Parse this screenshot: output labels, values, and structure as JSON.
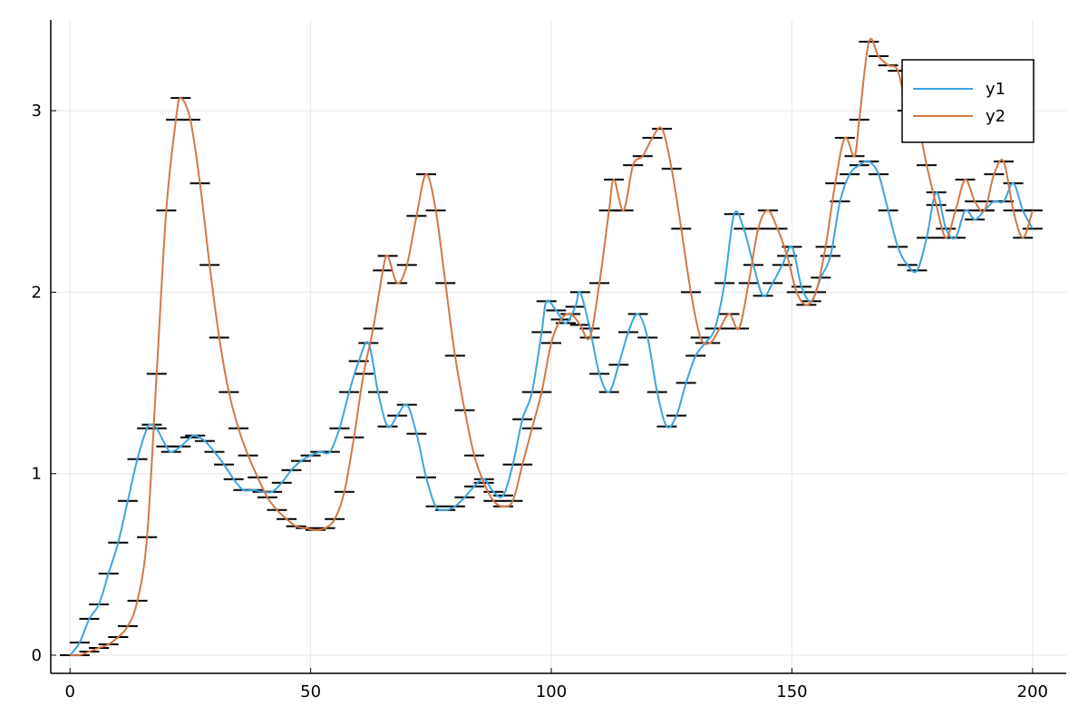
{
  "chart_data": {
    "type": "line",
    "title": "",
    "xlabel": "",
    "ylabel": "",
    "xlim": [
      -4,
      207
    ],
    "ylim": [
      -0.1,
      3.5
    ],
    "x_ticks": [
      0,
      50,
      100,
      150,
      200
    ],
    "y_ticks": [
      0,
      1,
      2,
      3
    ],
    "grid": true,
    "legend_position": "top-right",
    "series": [
      {
        "name": "y1",
        "color": "#3da4e0",
        "points": [
          [
            0,
            0
          ],
          [
            2,
            0.07
          ],
          [
            4,
            0.2
          ],
          [
            6,
            0.28
          ],
          [
            8,
            0.45
          ],
          [
            10,
            0.62
          ],
          [
            12,
            0.85
          ],
          [
            14,
            1.08
          ],
          [
            16,
            1.25
          ],
          [
            17,
            1.27
          ],
          [
            18,
            1.25
          ],
          [
            20,
            1.15
          ],
          [
            21,
            1.12
          ],
          [
            23,
            1.15
          ],
          [
            25,
            1.2
          ],
          [
            26,
            1.21
          ],
          [
            28,
            1.18
          ],
          [
            30,
            1.12
          ],
          [
            32,
            1.05
          ],
          [
            34,
            0.97
          ],
          [
            36,
            0.91
          ],
          [
            38,
            0.91
          ],
          [
            40,
            0.9
          ],
          [
            42,
            0.9
          ],
          [
            44,
            0.95
          ],
          [
            46,
            1.02
          ],
          [
            48,
            1.07
          ],
          [
            50,
            1.1
          ],
          [
            52,
            1.12
          ],
          [
            54,
            1.12
          ],
          [
            56,
            1.25
          ],
          [
            58,
            1.45
          ],
          [
            60,
            1.62
          ],
          [
            62,
            1.72
          ],
          [
            64,
            1.45
          ],
          [
            66,
            1.26
          ],
          [
            68,
            1.32
          ],
          [
            70,
            1.38
          ],
          [
            72,
            1.22
          ],
          [
            74,
            0.98
          ],
          [
            76,
            0.82
          ],
          [
            78,
            0.8
          ],
          [
            80,
            0.82
          ],
          [
            82,
            0.87
          ],
          [
            84,
            0.93
          ],
          [
            86,
            0.97
          ],
          [
            88,
            0.9
          ],
          [
            90,
            0.88
          ],
          [
            92,
            1.05
          ],
          [
            94,
            1.3
          ],
          [
            96,
            1.45
          ],
          [
            98,
            1.78
          ],
          [
            99,
            1.95
          ],
          [
            101,
            1.9
          ],
          [
            103,
            1.83
          ],
          [
            105,
            1.92
          ],
          [
            106,
            2.0
          ],
          [
            108,
            1.8
          ],
          [
            110,
            1.55
          ],
          [
            112,
            1.45
          ],
          [
            114,
            1.6
          ],
          [
            116,
            1.78
          ],
          [
            118,
            1.88
          ],
          [
            120,
            1.75
          ],
          [
            122,
            1.45
          ],
          [
            124,
            1.26
          ],
          [
            126,
            1.32
          ],
          [
            128,
            1.5
          ],
          [
            130,
            1.65
          ],
          [
            132,
            1.72
          ],
          [
            134,
            1.8
          ],
          [
            136,
            2.05
          ],
          [
            138,
            2.43
          ],
          [
            140,
            2.35
          ],
          [
            142,
            2.15
          ],
          [
            144,
            1.98
          ],
          [
            146,
            2.05
          ],
          [
            148,
            2.15
          ],
          [
            150,
            2.25
          ],
          [
            152,
            2.03
          ],
          [
            154,
            1.95
          ],
          [
            156,
            2.08
          ],
          [
            158,
            2.2
          ],
          [
            160,
            2.5
          ],
          [
            162,
            2.65
          ],
          [
            164,
            2.7
          ],
          [
            166,
            2.72
          ],
          [
            168,
            2.65
          ],
          [
            170,
            2.45
          ],
          [
            172,
            2.25
          ],
          [
            174,
            2.15
          ],
          [
            176,
            2.12
          ],
          [
            178,
            2.3
          ],
          [
            180,
            2.55
          ],
          [
            182,
            2.35
          ],
          [
            184,
            2.3
          ],
          [
            186,
            2.45
          ],
          [
            188,
            2.4
          ],
          [
            190,
            2.45
          ],
          [
            192,
            2.5
          ],
          [
            194,
            2.5
          ],
          [
            196,
            2.6
          ],
          [
            198,
            2.45
          ],
          [
            200,
            2.35
          ]
        ]
      },
      {
        "name": "y2",
        "color": "#d47845",
        "points": [
          [
            0,
            0
          ],
          [
            2,
            0.0
          ],
          [
            4,
            0.02
          ],
          [
            6,
            0.04
          ],
          [
            8,
            0.06
          ],
          [
            10,
            0.1
          ],
          [
            12,
            0.16
          ],
          [
            14,
            0.3
          ],
          [
            16,
            0.65
          ],
          [
            18,
            1.55
          ],
          [
            20,
            2.45
          ],
          [
            22,
            2.95
          ],
          [
            23,
            3.07
          ],
          [
            25,
            2.95
          ],
          [
            27,
            2.6
          ],
          [
            29,
            2.15
          ],
          [
            31,
            1.75
          ],
          [
            33,
            1.45
          ],
          [
            35,
            1.25
          ],
          [
            37,
            1.1
          ],
          [
            39,
            0.98
          ],
          [
            41,
            0.87
          ],
          [
            43,
            0.8
          ],
          [
            45,
            0.75
          ],
          [
            47,
            0.71
          ],
          [
            49,
            0.7
          ],
          [
            51,
            0.69
          ],
          [
            53,
            0.7
          ],
          [
            55,
            0.75
          ],
          [
            57,
            0.9
          ],
          [
            59,
            1.2
          ],
          [
            61,
            1.55
          ],
          [
            63,
            1.8
          ],
          [
            65,
            2.12
          ],
          [
            66,
            2.2
          ],
          [
            68,
            2.05
          ],
          [
            70,
            2.15
          ],
          [
            72,
            2.42
          ],
          [
            74,
            2.65
          ],
          [
            76,
            2.45
          ],
          [
            78,
            2.05
          ],
          [
            80,
            1.65
          ],
          [
            82,
            1.35
          ],
          [
            84,
            1.1
          ],
          [
            86,
            0.95
          ],
          [
            88,
            0.85
          ],
          [
            90,
            0.82
          ],
          [
            92,
            0.85
          ],
          [
            94,
            1.05
          ],
          [
            96,
            1.25
          ],
          [
            98,
            1.45
          ],
          [
            100,
            1.72
          ],
          [
            102,
            1.85
          ],
          [
            104,
            1.88
          ],
          [
            106,
            1.82
          ],
          [
            108,
            1.75
          ],
          [
            110,
            2.05
          ],
          [
            112,
            2.45
          ],
          [
            113,
            2.62
          ],
          [
            115,
            2.45
          ],
          [
            117,
            2.7
          ],
          [
            119,
            2.75
          ],
          [
            121,
            2.85
          ],
          [
            123,
            2.9
          ],
          [
            125,
            2.68
          ],
          [
            127,
            2.35
          ],
          [
            129,
            2.0
          ],
          [
            131,
            1.75
          ],
          [
            133,
            1.72
          ],
          [
            135,
            1.8
          ],
          [
            137,
            1.88
          ],
          [
            139,
            1.8
          ],
          [
            141,
            2.05
          ],
          [
            143,
            2.35
          ],
          [
            145,
            2.45
          ],
          [
            147,
            2.35
          ],
          [
            149,
            2.2
          ],
          [
            151,
            2.0
          ],
          [
            153,
            1.93
          ],
          [
            155,
            2.0
          ],
          [
            157,
            2.25
          ],
          [
            159,
            2.6
          ],
          [
            161,
            2.85
          ],
          [
            163,
            2.75
          ],
          [
            164,
            2.95
          ],
          [
            166,
            3.38
          ],
          [
            168,
            3.3
          ],
          [
            170,
            3.25
          ],
          [
            172,
            3.22
          ],
          [
            174,
            3.0
          ],
          [
            176,
            2.95
          ],
          [
            178,
            2.7
          ],
          [
            180,
            2.48
          ],
          [
            182,
            2.3
          ],
          [
            184,
            2.45
          ],
          [
            186,
            2.62
          ],
          [
            188,
            2.5
          ],
          [
            190,
            2.45
          ],
          [
            192,
            2.65
          ],
          [
            194,
            2.72
          ],
          [
            196,
            2.45
          ],
          [
            198,
            2.3
          ],
          [
            200,
            2.45
          ]
        ]
      }
    ]
  }
}
